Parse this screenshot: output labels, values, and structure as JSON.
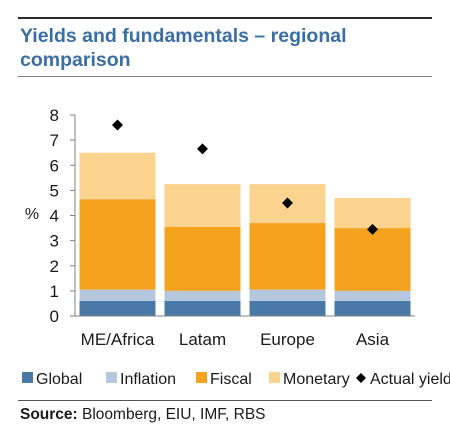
{
  "title": "Yields and fundamentals – regional comparison",
  "source": {
    "label": "Source:",
    "text": " Bloomberg, EIU, IMF, RBS"
  },
  "chart_data": {
    "type": "bar",
    "stacked": true,
    "ylabel": "%",
    "ylim": [
      0,
      8
    ],
    "yticks": [
      "0",
      "1",
      "2",
      "3",
      "4",
      "5",
      "6",
      "7",
      "8"
    ],
    "grid": false,
    "legend_position": "bottom",
    "categories": [
      "ME/Africa",
      "Latam",
      "Europe",
      "Asia"
    ],
    "series": [
      {
        "name": "Global",
        "color": "#4a79a8",
        "values": [
          0.6,
          0.6,
          0.6,
          0.6
        ]
      },
      {
        "name": "Inflation",
        "color": "#b4c7dc",
        "values": [
          0.45,
          0.4,
          0.45,
          0.4
        ]
      },
      {
        "name": "Fiscal",
        "color": "#f5a31f",
        "values": [
          3.6,
          2.55,
          2.65,
          2.5
        ]
      },
      {
        "name": "Monetary",
        "color": "#fbd28e",
        "values": [
          1.85,
          1.7,
          1.55,
          1.2
        ]
      }
    ],
    "markers": {
      "name": "Actual yield",
      "color": "#000000",
      "values": [
        7.6,
        6.65,
        4.5,
        3.45
      ]
    }
  }
}
